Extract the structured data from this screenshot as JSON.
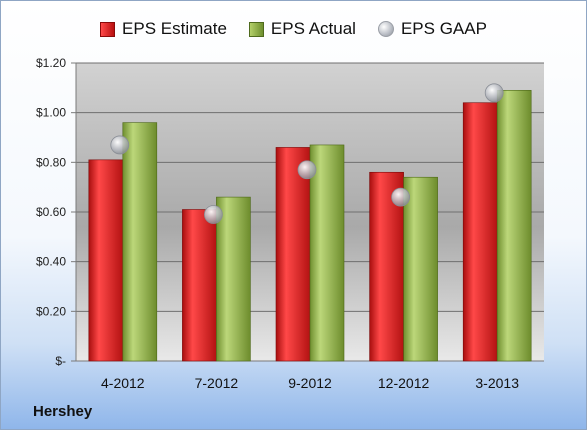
{
  "chart_data": {
    "type": "bar",
    "categories": [
      "4-2012",
      "7-2012",
      "9-2012",
      "12-2012",
      "3-2013"
    ],
    "series": [
      {
        "name": "EPS Estimate",
        "values": [
          0.81,
          0.61,
          0.86,
          0.76,
          1.04
        ]
      },
      {
        "name": "EPS Actual",
        "values": [
          0.96,
          0.66,
          0.87,
          0.74,
          1.09
        ]
      },
      {
        "name": "EPS GAAP",
        "values": [
          0.87,
          0.59,
          0.77,
          0.66,
          1.08
        ]
      }
    ],
    "ylim": [
      0,
      1.2
    ],
    "yticks": [
      "$-",
      "$0.20",
      "$0.40",
      "$0.60",
      "$0.80",
      "$1.00",
      "$1.20"
    ],
    "grid": true,
    "legend": "top",
    "colors": {
      "estimate": "#d42020",
      "actual": "#8fb04a",
      "gaap": "#b8bcc4"
    }
  },
  "footer": {
    "company": "Hershey"
  }
}
